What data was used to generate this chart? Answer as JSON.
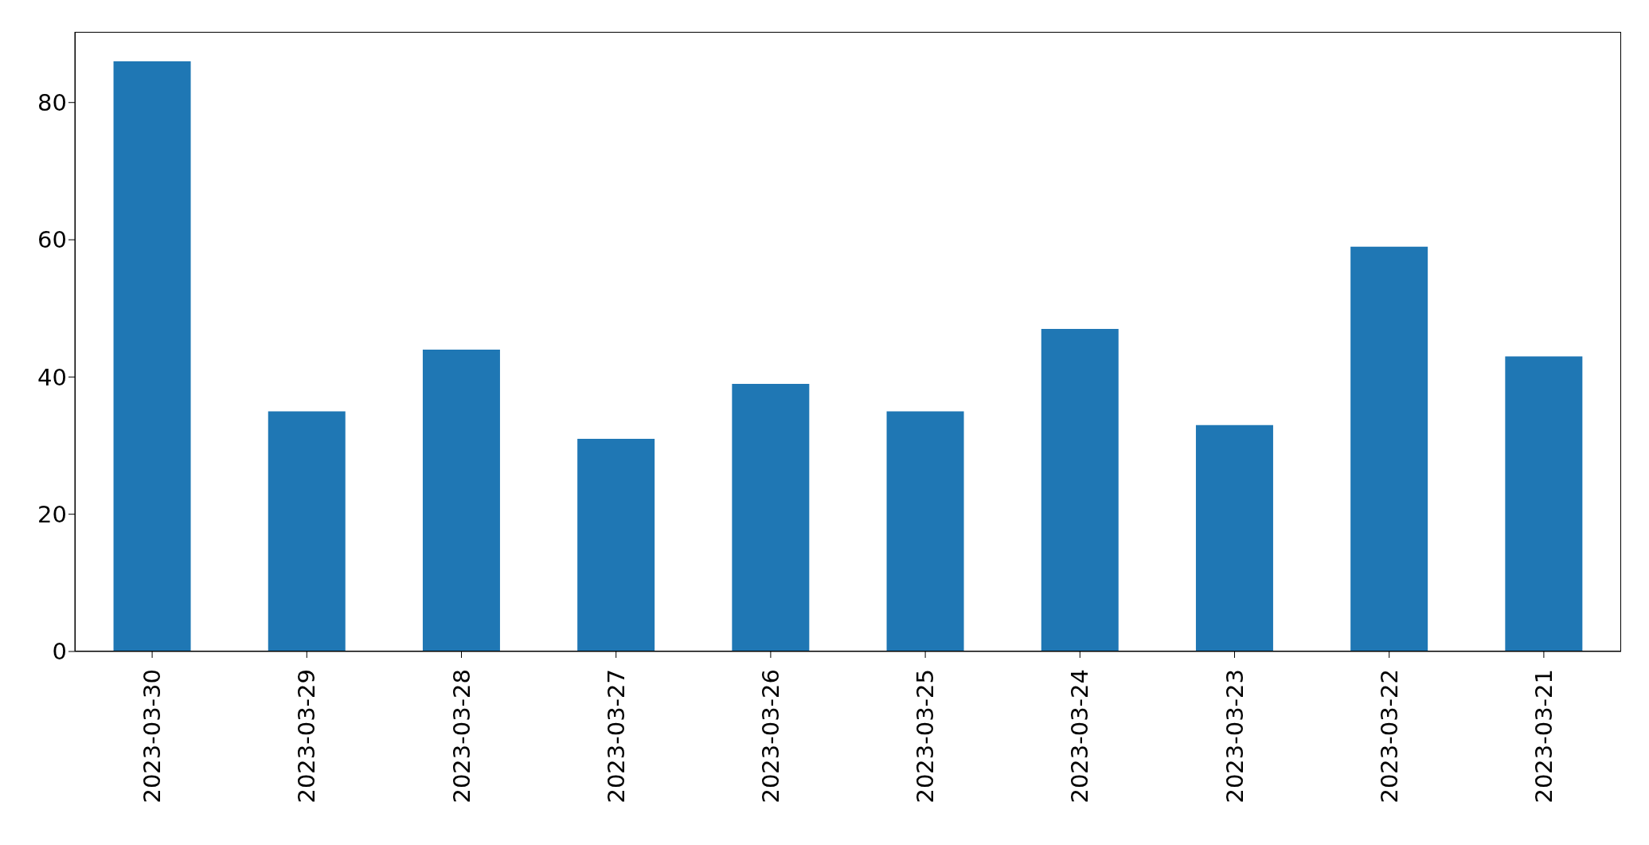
{
  "chart_data": {
    "type": "bar",
    "categories": [
      "2023-03-30",
      "2023-03-29",
      "2023-03-28",
      "2023-03-27",
      "2023-03-26",
      "2023-03-25",
      "2023-03-24",
      "2023-03-23",
      "2023-03-22",
      "2023-03-21"
    ],
    "values": [
      86,
      35,
      44,
      31,
      39,
      35,
      47,
      33,
      59,
      43
    ],
    "color": "#1f77b4",
    "ylim": [
      0,
      90.3
    ],
    "yticks": [
      0,
      20,
      40,
      60,
      80
    ],
    "grid": false,
    "legend": false
  }
}
